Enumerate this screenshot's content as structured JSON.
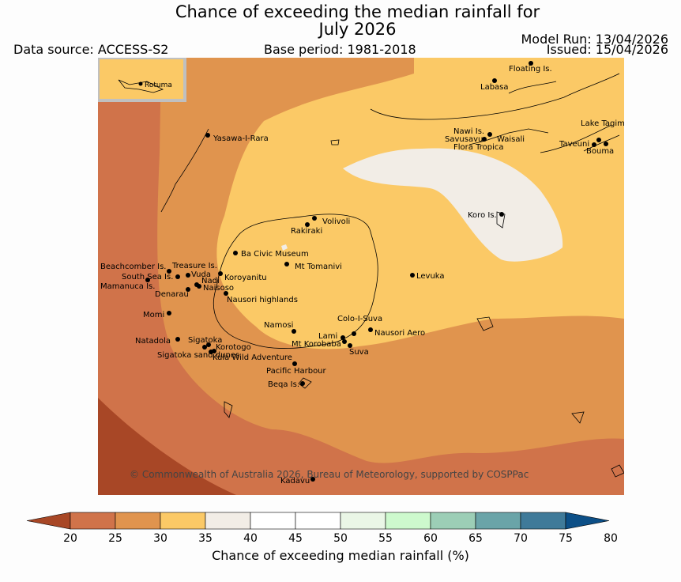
{
  "header": {
    "title_line1": "Chance of exceeding the median rainfall for",
    "title_line2": "July 2026",
    "data_source": "Data source: ACCESS-S2",
    "base_period": "Base period: 1981-2018",
    "model_run": "Model Run: 13/04/2026",
    "issued": "Issued: 15/04/2026"
  },
  "map": {
    "inset_label": "Rotuma",
    "copyright": "© Commonwealth of Australia 2026, Bureau of Meteorology, supported by COSPPac",
    "places": [
      "Floating Is.",
      "Labasa",
      "Yasawa-I-Rara",
      "Nawi Is.",
      "Savusavu",
      "Waisali",
      "Flora Tropica",
      "Lake Tagimaucia",
      "Taveuni",
      "Bouma",
      "Volivoli",
      "Rakiraki",
      "Koro Is.",
      "Ba Civic Museum",
      "Mt Tomanivi",
      "Beachcomber Is.",
      "Treasure Is.",
      "South Sea Is.",
      "Vuda",
      "Koroyanitu",
      "Mamanuca Is.",
      "Nadi",
      "Naisoso",
      "Denarau",
      "Levuka",
      "Nausori highlands",
      "Momi",
      "Colo-I-Suva",
      "Namosi",
      "Nausori Aero",
      "Lami",
      "Natadola",
      "Sigatoka",
      "Mt Korobaba",
      "Korotogo",
      "Suva",
      "Sigatoka sand dunes",
      "Kula Wild Adventure",
      "Pacific Harbour",
      "Beqa Is.",
      "Kadavu"
    ]
  },
  "colorbar": {
    "label": "Chance of exceeding median rainfall (%)",
    "ticks": [
      "20",
      "25",
      "30",
      "35",
      "40",
      "45",
      "50",
      "55",
      "60",
      "65",
      "70",
      "75",
      "80"
    ],
    "colors": [
      "#d0734a",
      "#e0944e",
      "#fbc966",
      "#f2ede6",
      "#ffffff",
      "#ffffff",
      "#eaf6e6",
      "#cdf9cd",
      "#9cceb6",
      "#6aa4a8",
      "#3f7a99"
    ],
    "under_color": "#a84726",
    "over_color": "#0c4f87"
  }
}
